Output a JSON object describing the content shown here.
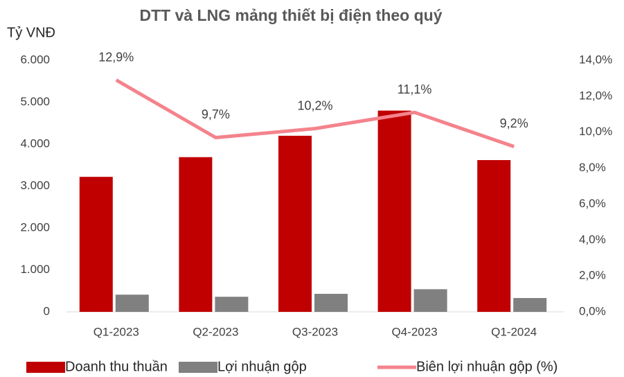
{
  "chart_data": {
    "type": "bar-line",
    "title": "DTT và LNG mảng thiết bị điện theo quý",
    "y_axis_label": "Tỷ VNĐ",
    "categories": [
      "Q1-2023",
      "Q2-2023",
      "Q3-2023",
      "Q4-2023",
      "Q1-2024"
    ],
    "series": [
      {
        "name": "Doanh thu thuần",
        "type": "bar",
        "color": "#c00000",
        "values": [
          3220,
          3690,
          4200,
          4800,
          3620
        ]
      },
      {
        "name": "Lợi nhuận gộp",
        "type": "bar",
        "color": "#808080",
        "values": [
          410,
          360,
          430,
          540,
          330
        ]
      },
      {
        "name": "Biên lợi nhuận gộp (%)",
        "type": "line",
        "axis": "y2",
        "color": "#f4838c",
        "values": [
          12.9,
          9.7,
          10.2,
          11.1,
          9.2
        ],
        "value_labels": [
          "12,9%",
          "9,7%",
          "10,2%",
          "11,1%",
          "9,2%"
        ]
      }
    ],
    "ylim": [
      0,
      6000
    ],
    "yticks": [
      0,
      {
        "value": 1000,
        "label": "1.000"
      },
      {
        "value": 2000,
        "label": "2.000"
      },
      {
        "value": 3000,
        "label": "3.000"
      },
      {
        "value": 4000,
        "label": "4.000"
      },
      {
        "value": 5000,
        "label": "5.000"
      },
      {
        "value": 6000,
        "label": "6.000"
      }
    ],
    "y2lim": [
      0,
      14
    ],
    "y2ticks": [
      {
        "value": 0,
        "label": "0,0%"
      },
      {
        "value": 2,
        "label": "2,0%"
      },
      {
        "value": 4,
        "label": "4,0%"
      },
      {
        "value": 6,
        "label": "6,0%"
      },
      {
        "value": 8,
        "label": "8,0%"
      },
      {
        "value": 10,
        "label": "10,0%"
      },
      {
        "value": 12,
        "label": "12,0%"
      },
      {
        "value": 14,
        "label": "14,0%"
      }
    ],
    "legend": "bottom"
  }
}
